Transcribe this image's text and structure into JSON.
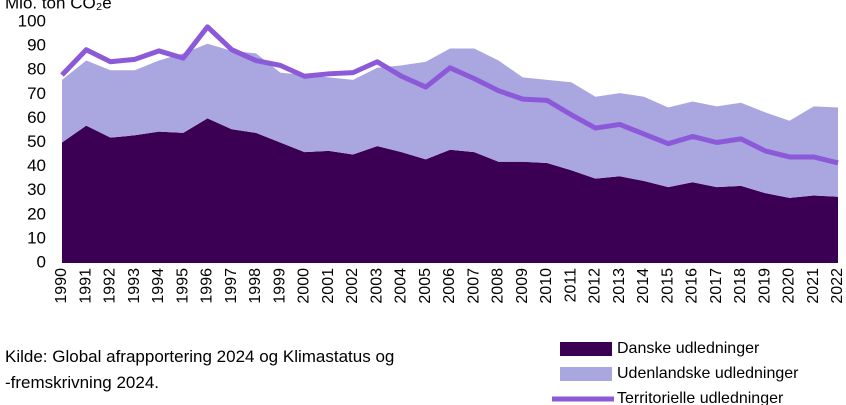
{
  "chart_data": {
    "type": "stacked-area-line",
    "y_axis_label": "Mio. ton CO₂e",
    "categories": [
      "1990",
      "1991",
      "1992",
      "1993",
      "1994",
      "1995",
      "1996",
      "1997",
      "1998",
      "1999",
      "2000",
      "2001",
      "2002",
      "2003",
      "2004",
      "2005",
      "2006",
      "2007",
      "2008",
      "2009",
      "2010",
      "2011",
      "2012",
      "2013",
      "2014",
      "2015",
      "2016",
      "2017",
      "2018",
      "2019",
      "2020",
      "2021",
      "2022"
    ],
    "series": [
      {
        "name": "Danske udledninger",
        "color": "#3b0054",
        "kind": "area",
        "values": [
          50,
          57,
          52,
          53,
          54.5,
          54,
          60,
          55.5,
          54,
          50,
          46,
          46.5,
          45,
          48.5,
          46,
          43,
          47,
          46,
          42,
          42,
          41.5,
          38.5,
          35,
          36,
          34,
          31.5,
          33.5,
          31.5,
          32,
          29,
          27,
          28,
          27.5
        ]
      },
      {
        "name": "Udenlandske udledninger",
        "color": "#a9a6e0",
        "kind": "area",
        "values": [
          26,
          27,
          28,
          27,
          29.5,
          33,
          31,
          32.5,
          33,
          29,
          32,
          30.5,
          31,
          32.5,
          36,
          40.5,
          42,
          43,
          42,
          35,
          34.5,
          36.5,
          34,
          34.5,
          35,
          33,
          33.5,
          33.5,
          34.5,
          33.5,
          32,
          37,
          37
        ]
      },
      {
        "name": "Territorielle udledninger",
        "color": "#8c5ad8",
        "kind": "line",
        "values": [
          78,
          88.5,
          83.5,
          84.5,
          88,
          85,
          98,
          88.5,
          84,
          82,
          77.5,
          78.5,
          79,
          83.5,
          77.5,
          73,
          81,
          76.5,
          71.5,
          68,
          67.5,
          61.5,
          56,
          57.5,
          53.5,
          49.5,
          52.5,
          50,
          51.5,
          46.5,
          44,
          44,
          41.5
        ]
      }
    ],
    "ylim": [
      0,
      100
    ],
    "yticks": [
      0,
      10,
      20,
      30,
      40,
      50,
      60,
      70,
      80,
      90,
      100
    ],
    "source": "Kilde: Global afrapportering 2024 og Klimastatus og -fremskrivning 2024."
  }
}
